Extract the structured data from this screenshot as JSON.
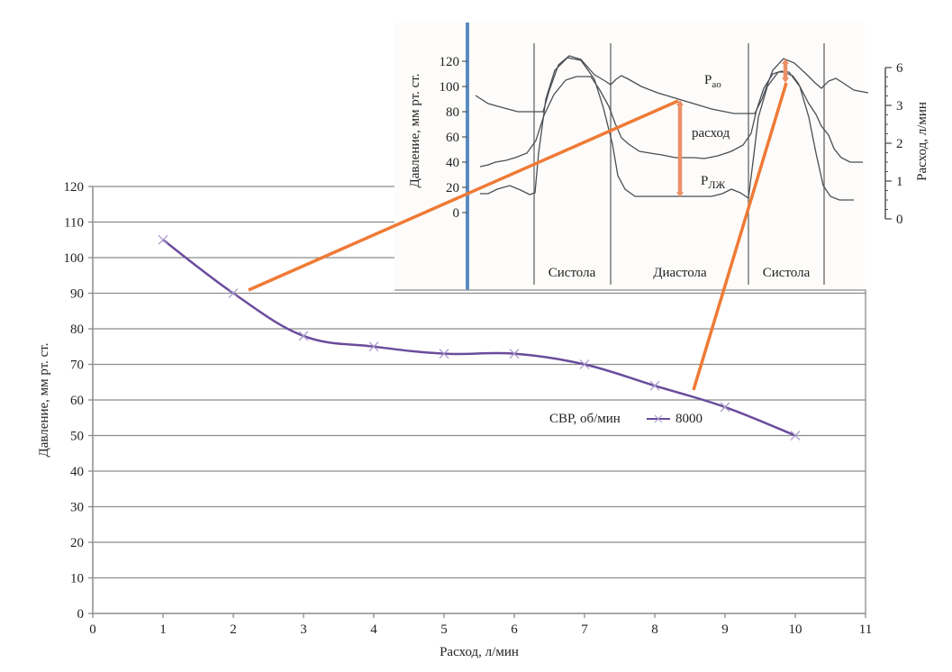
{
  "chart_data": [
    {
      "type": "line",
      "name": "main",
      "xlabel": "Расход, л/мин",
      "ylabel": "Давление, мм рт. ст.",
      "xlim": [
        0,
        11
      ],
      "ylim": [
        0,
        120
      ],
      "x_ticks": [
        "0",
        "1",
        "2",
        "3",
        "4",
        "5",
        "6",
        "7",
        "8",
        "9",
        "10",
        "11"
      ],
      "y_ticks": [
        "0",
        "10",
        "20",
        "30",
        "40",
        "50",
        "60",
        "70",
        "80",
        "90",
        "100",
        "110",
        "120"
      ],
      "grid": true,
      "legend": {
        "title": "СВР, об/мин",
        "placement": "lower-right",
        "entries": [
          "8000"
        ]
      },
      "series": [
        {
          "name": "8000",
          "color": "#6a4c9c",
          "marker": "x",
          "x": [
            1,
            2,
            3,
            4,
            5,
            6,
            7,
            8,
            9,
            10
          ],
          "y": [
            105,
            90,
            78,
            75,
            73,
            73,
            70,
            64,
            58,
            50
          ]
        }
      ]
    },
    {
      "type": "line",
      "name": "inset",
      "ylabel_left": "Давление, мм рт. ст.",
      "ylabel_right": "Расход, л/мин",
      "y_ticks_left": [
        "0",
        "20",
        "40",
        "60",
        "80",
        "100",
        "120"
      ],
      "y_ticks_right": [
        "0",
        "1",
        "2",
        "3",
        "6"
      ],
      "phase_labels": [
        "Систола",
        "Диастола",
        "Систола"
      ],
      "curve_labels": {
        "aortic": "P",
        "aortic_sub": "ао",
        "flow": "расход",
        "lv": "P",
        "lv_sub": "ЛЖ"
      },
      "line_color": "#4a4f55",
      "axis_color": "#5b8cc2",
      "arrow_color": "#ef7a35"
    }
  ]
}
